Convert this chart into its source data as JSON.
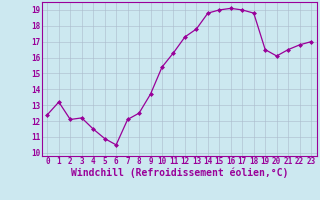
{
  "x": [
    0,
    1,
    2,
    3,
    4,
    5,
    6,
    7,
    8,
    9,
    10,
    11,
    12,
    13,
    14,
    15,
    16,
    17,
    18,
    19,
    20,
    21,
    22,
    23
  ],
  "y": [
    12.4,
    13.2,
    12.1,
    12.2,
    11.5,
    10.9,
    10.5,
    12.1,
    12.5,
    13.7,
    15.4,
    16.3,
    17.3,
    17.8,
    18.8,
    19.0,
    19.1,
    19.0,
    18.8,
    16.5,
    16.1,
    16.5,
    16.8,
    17.0
  ],
  "line_color": "#990099",
  "marker": "D",
  "marker_size": 2.0,
  "bg_color": "#cce8f0",
  "grid_color": "#aabbcc",
  "xlabel": "Windchill (Refroidissement éolien,°C)",
  "xlabel_color": "#990099",
  "tick_color": "#990099",
  "spine_color": "#990099",
  "ylim": [
    9.8,
    19.5
  ],
  "xlim": [
    -0.5,
    23.5
  ],
  "yticks": [
    10,
    11,
    12,
    13,
    14,
    15,
    16,
    17,
    18,
    19
  ],
  "xticks": [
    0,
    1,
    2,
    3,
    4,
    5,
    6,
    7,
    8,
    9,
    10,
    11,
    12,
    13,
    14,
    15,
    16,
    17,
    18,
    19,
    20,
    21,
    22,
    23
  ],
  "tick_fontsize": 5.5,
  "xlabel_fontsize": 7.0,
  "linewidth": 0.9
}
